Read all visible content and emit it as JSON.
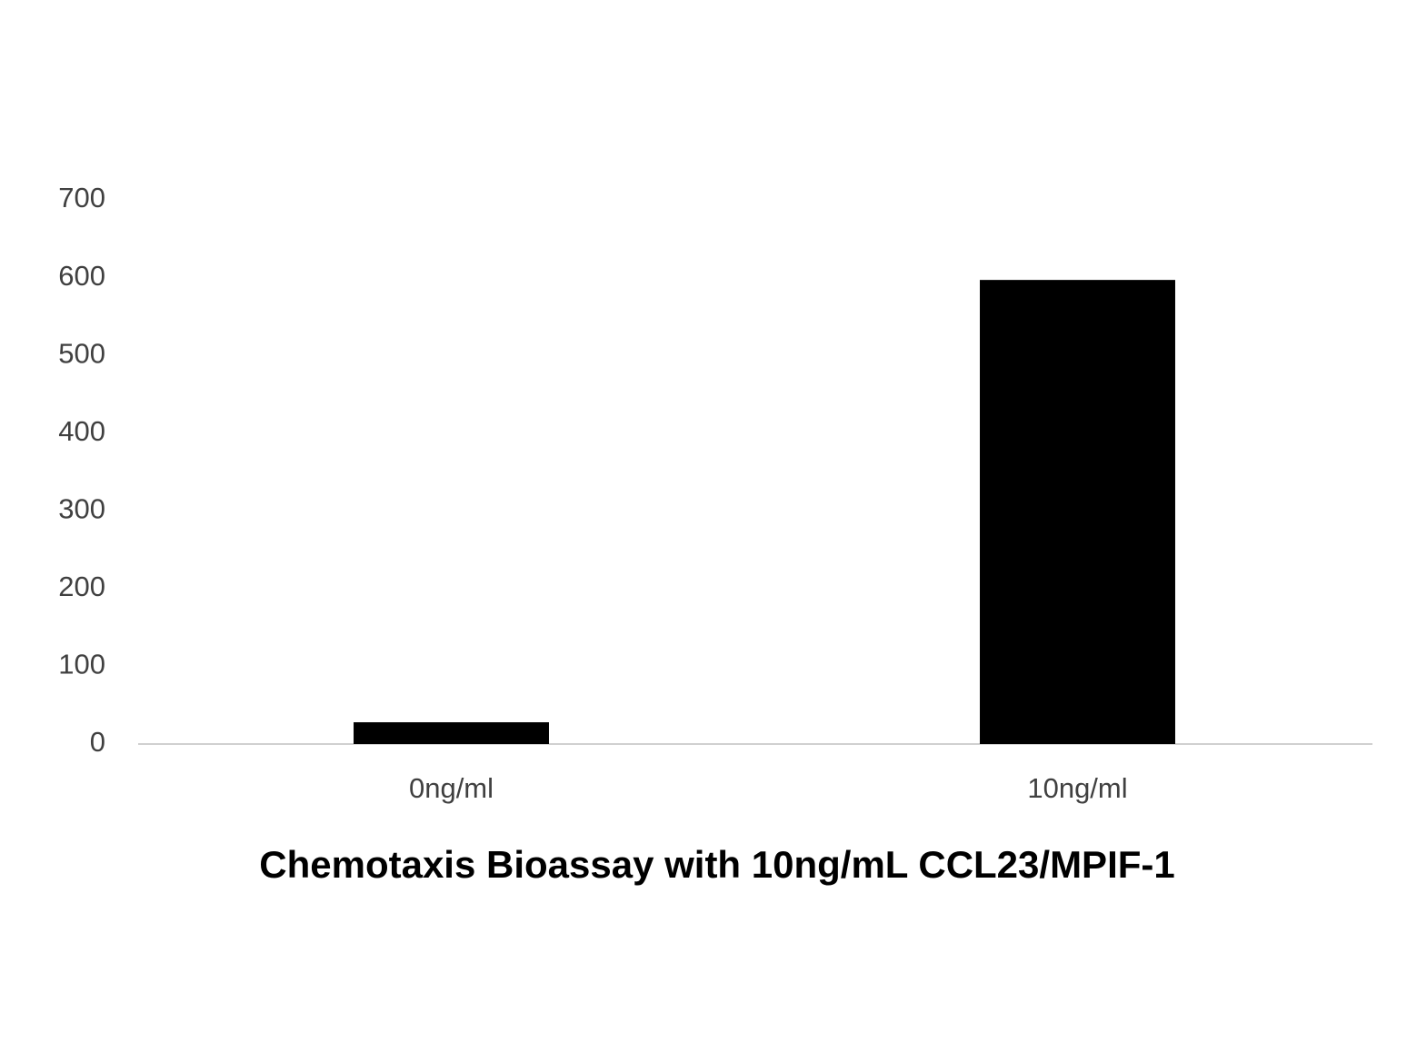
{
  "chart_data": {
    "type": "bar",
    "title": "Chemotaxis Bioassay with 10ng/mL CCL23/MPIF-1",
    "categories": [
      "0ng/ml",
      "10ng/ml"
    ],
    "values": [
      28,
      597
    ],
    "color": "#000000",
    "ylim": [
      0,
      700
    ],
    "yticks": [
      0,
      100,
      200,
      300,
      400,
      500,
      600,
      700
    ],
    "grid": false
  }
}
